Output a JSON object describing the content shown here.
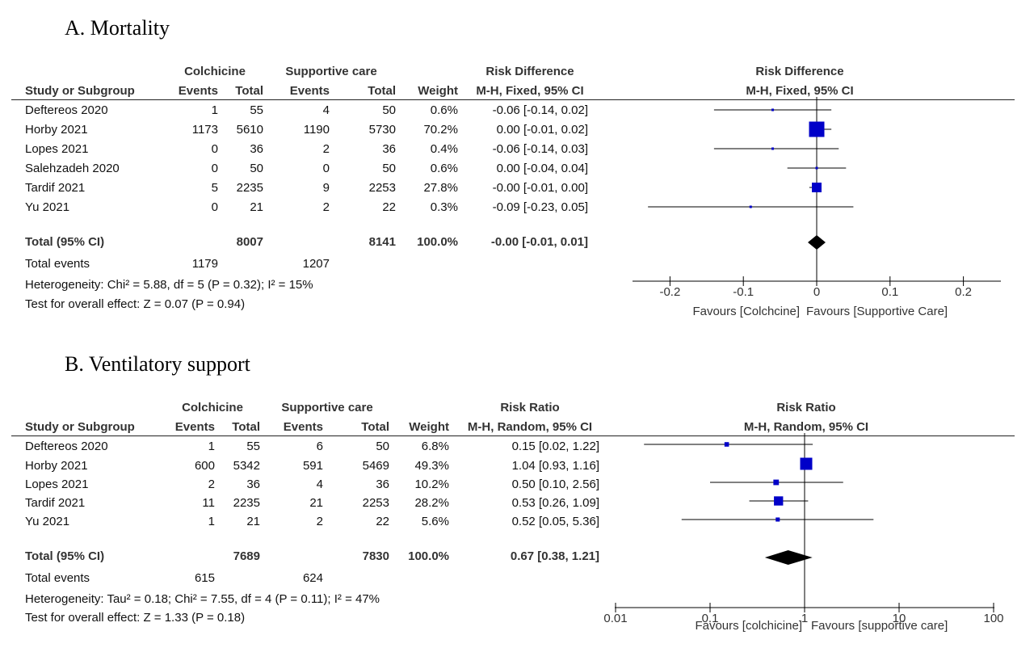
{
  "colors": {
    "marker": "#0000c8",
    "text": "#111111",
    "axis": "#000000"
  },
  "panels": [
    {
      "title": "A. Mortality",
      "hdr": {
        "group1": "Colchicine",
        "group2": "Supportive care",
        "metric": "Risk Difference",
        "method": "M-H, Fixed, 95% CI",
        "study": "Study or Subgroup",
        "events": "Events",
        "total": "Total",
        "weight": "Weight"
      },
      "rows": [
        {
          "study": "Deftereos 2020",
          "e1": "1",
          "t1": "55",
          "e2": "4",
          "t2": "50",
          "w": "0.6%",
          "ci": "-0.06 [-0.14, 0.02]"
        },
        {
          "study": "Horby 2021",
          "e1": "1173",
          "t1": "5610",
          "e2": "1190",
          "t2": "5730",
          "w": "70.2%",
          "ci": "0.00 [-0.01, 0.02]"
        },
        {
          "study": "Lopes 2021",
          "e1": "0",
          "t1": "36",
          "e2": "2",
          "t2": "36",
          "w": "0.4%",
          "ci": "-0.06 [-0.14, 0.03]"
        },
        {
          "study": "Salehzadeh 2020",
          "e1": "0",
          "t1": "50",
          "e2": "0",
          "t2": "50",
          "w": "0.6%",
          "ci": "0.00 [-0.04, 0.04]"
        },
        {
          "study": "Tardif 2021",
          "e1": "5",
          "t1": "2235",
          "e2": "9",
          "t2": "2253",
          "w": "27.8%",
          "ci": "-0.00 [-0.01, 0.00]"
        },
        {
          "study": "Yu 2021",
          "e1": "0",
          "t1": "21",
          "e2": "2",
          "t2": "22",
          "w": "0.3%",
          "ci": "-0.09 [-0.23, 0.05]"
        }
      ],
      "total": {
        "label": "Total (95% CI)",
        "t1": "8007",
        "t2": "8141",
        "w": "100.0%",
        "ci": "-0.00 [-0.01, 0.01]"
      },
      "events": {
        "label": "Total events",
        "e1": "1179",
        "e2": "1207"
      },
      "heterogeneity": "Heterogeneity: Chi² = 5.88, df = 5 (P = 0.32); I² = 15%",
      "overall": "Test for overall effect: Z = 0.07 (P = 0.94)",
      "favours_left": "Favours [Colchcine]",
      "favours_right": "Favours [Supportive Care]"
    },
    {
      "title": "B. Ventilatory support",
      "hdr": {
        "group1": "Colchicine",
        "group2": "Supportive care",
        "metric": "Risk Ratio",
        "method": "M-H, Random, 95% CI",
        "study": "Study or Subgroup",
        "events": "Events",
        "total": "Total",
        "weight": "Weight"
      },
      "rows": [
        {
          "study": "Deftereos 2020",
          "e1": "1",
          "t1": "55",
          "e2": "6",
          "t2": "50",
          "w": "6.8%",
          "ci": "0.15 [0.02, 1.22]"
        },
        {
          "study": "Horby 2021",
          "e1": "600",
          "t1": "5342",
          "e2": "591",
          "t2": "5469",
          "w": "49.3%",
          "ci": "1.04 [0.93, 1.16]"
        },
        {
          "study": "Lopes 2021",
          "e1": "2",
          "t1": "36",
          "e2": "4",
          "t2": "36",
          "w": "10.2%",
          "ci": "0.50 [0.10, 2.56]"
        },
        {
          "study": "Tardif 2021",
          "e1": "11",
          "t1": "2235",
          "e2": "21",
          "t2": "2253",
          "w": "28.2%",
          "ci": "0.53 [0.26, 1.09]"
        },
        {
          "study": "Yu 2021",
          "e1": "1",
          "t1": "21",
          "e2": "2",
          "t2": "22",
          "w": "5.6%",
          "ci": "0.52 [0.05, 5.36]"
        }
      ],
      "total": {
        "label": "Total (95% CI)",
        "t1": "7689",
        "t2": "7830",
        "w": "100.0%",
        "ci": "0.67 [0.38, 1.21]"
      },
      "events": {
        "label": "Total events",
        "e1": "615",
        "e2": "624"
      },
      "heterogeneity": "Heterogeneity: Tau² = 0.18; Chi² = 7.55, df = 4 (P = 0.11); I² = 47%",
      "overall": "Test for overall effect: Z = 1.33 (P = 0.18)",
      "favours_left": "Favours [colchicine]",
      "favours_right": "Favours [supportive care]"
    }
  ],
  "chart_data": [
    {
      "type": "forest",
      "title": "Risk Difference",
      "subtitle": "M-H, Fixed, 95% CI",
      "scale": "linear",
      "xlim": [
        -0.25,
        0.25
      ],
      "ticks": [
        -0.2,
        -0.1,
        0,
        0.1,
        0.2
      ],
      "tick_labels": [
        "-0.2",
        "-0.1",
        "0",
        "0.1",
        "0.2"
      ],
      "studies": [
        {
          "name": "Deftereos 2020",
          "est": -0.06,
          "lo": -0.14,
          "hi": 0.02,
          "weight": 0.6
        },
        {
          "name": "Horby 2021",
          "est": 0.0,
          "lo": -0.01,
          "hi": 0.02,
          "weight": 70.2
        },
        {
          "name": "Lopes 2021",
          "est": -0.06,
          "lo": -0.14,
          "hi": 0.03,
          "weight": 0.4
        },
        {
          "name": "Salehzadeh 2020",
          "est": 0.0,
          "lo": -0.04,
          "hi": 0.04,
          "weight": 0.6
        },
        {
          "name": "Tardif 2021",
          "est": -0.0,
          "lo": -0.01,
          "hi": 0.0,
          "weight": 27.8
        },
        {
          "name": "Yu 2021",
          "est": -0.09,
          "lo": -0.23,
          "hi": 0.05,
          "weight": 0.3
        }
      ],
      "pooled": {
        "est": -0.0,
        "lo": -0.01,
        "hi": 0.01
      }
    },
    {
      "type": "forest",
      "title": "Risk Ratio",
      "subtitle": "M-H, Random, 95% CI",
      "scale": "log",
      "xlim": [
        0.01,
        100
      ],
      "ticks": [
        0.01,
        0.1,
        1,
        10,
        100
      ],
      "tick_labels": [
        "0.01",
        "0.1",
        "1",
        "10",
        "100"
      ],
      "studies": [
        {
          "name": "Deftereos 2020",
          "est": 0.15,
          "lo": 0.02,
          "hi": 1.22,
          "weight": 6.8
        },
        {
          "name": "Horby 2021",
          "est": 1.04,
          "lo": 0.93,
          "hi": 1.16,
          "weight": 49.3
        },
        {
          "name": "Lopes 2021",
          "est": 0.5,
          "lo": 0.1,
          "hi": 2.56,
          "weight": 10.2
        },
        {
          "name": "Tardif 2021",
          "est": 0.53,
          "lo": 0.26,
          "hi": 1.09,
          "weight": 28.2
        },
        {
          "name": "Yu 2021",
          "est": 0.52,
          "lo": 0.05,
          "hi": 5.36,
          "weight": 5.6
        }
      ],
      "pooled": {
        "est": 0.67,
        "lo": 0.38,
        "hi": 1.21
      }
    }
  ]
}
